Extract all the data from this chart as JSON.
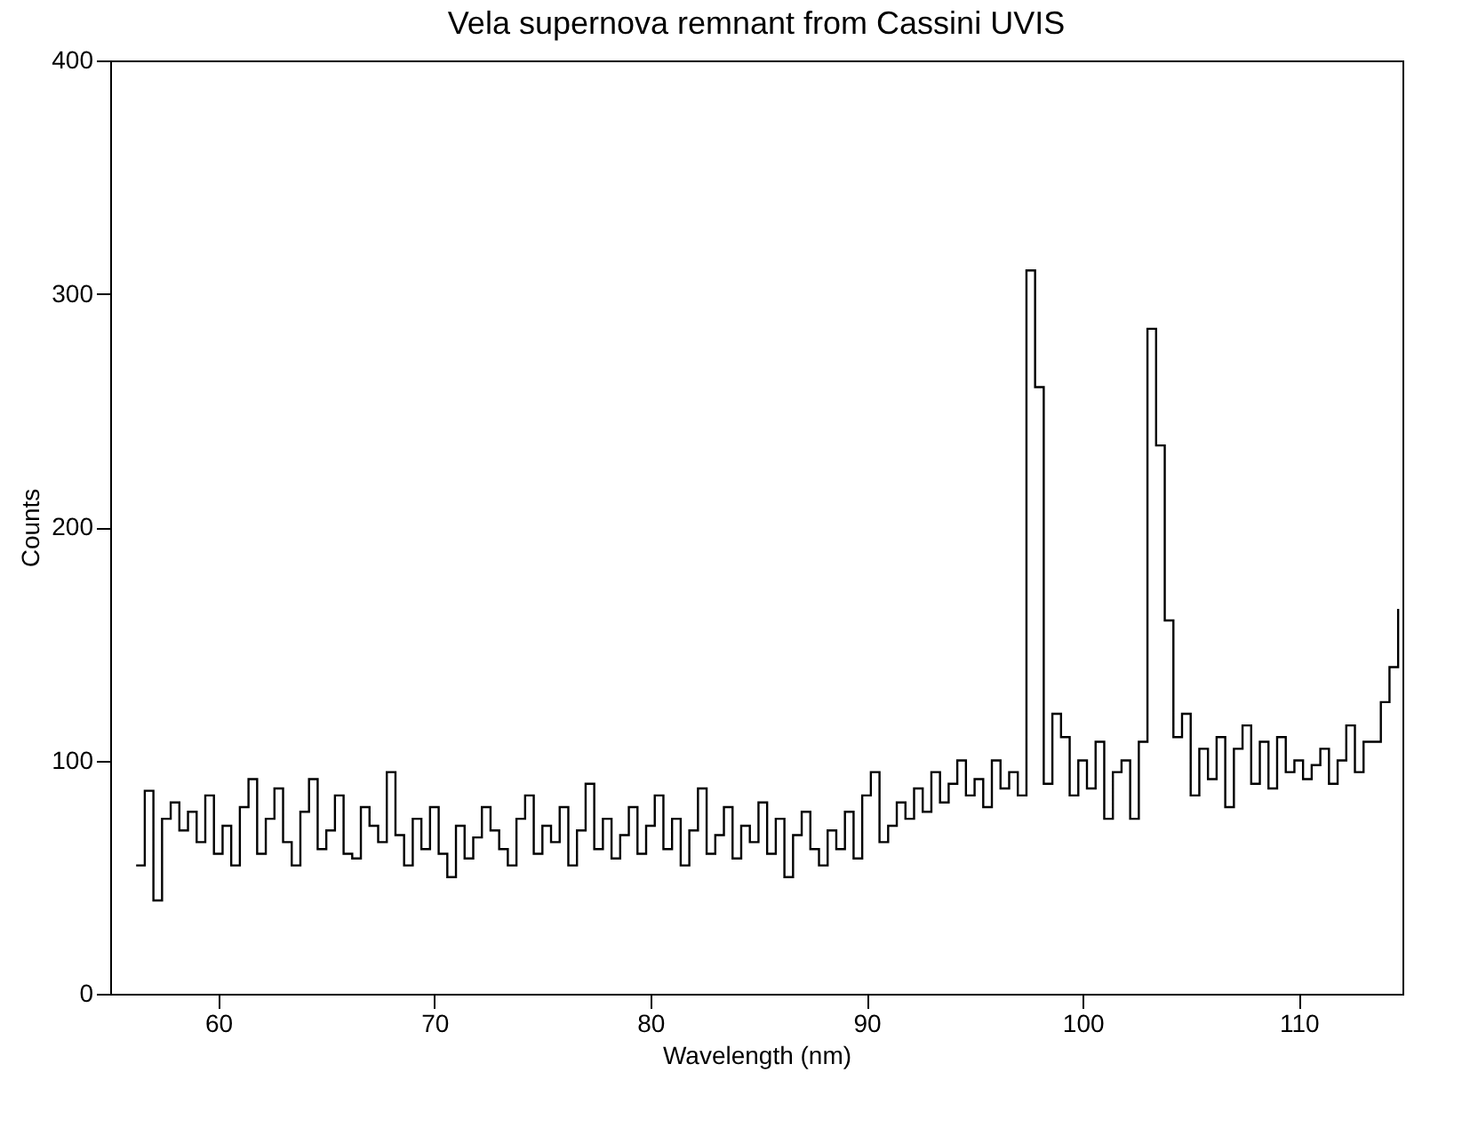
{
  "chart_data": {
    "type": "step",
    "title": "Vela supernova remnant from Cassini UVIS",
    "xlabel": "Wavelength (nm)",
    "ylabel": "Counts",
    "xlim": [
      55,
      114.8
    ],
    "xticks": [
      60,
      70,
      80,
      90,
      100,
      110
    ],
    "ylim": [
      0,
      400
    ],
    "yticks": [
      0,
      100,
      200,
      300,
      400
    ],
    "grid": false,
    "x": [
      56.2,
      56.6,
      57.0,
      57.4,
      57.8,
      58.2,
      58.6,
      59.0,
      59.4,
      59.8,
      60.2,
      60.6,
      61.0,
      61.4,
      61.8,
      62.2,
      62.6,
      63.0,
      63.4,
      63.8,
      64.2,
      64.6,
      65.0,
      65.4,
      65.8,
      66.2,
      66.6,
      67.0,
      67.4,
      67.8,
      68.2,
      68.6,
      69.0,
      69.4,
      69.8,
      70.2,
      70.6,
      71.0,
      71.4,
      71.8,
      72.2,
      72.6,
      73.0,
      73.4,
      73.8,
      74.2,
      74.6,
      75.0,
      75.4,
      75.8,
      76.2,
      76.6,
      77.0,
      77.4,
      77.8,
      78.2,
      78.6,
      79.0,
      79.4,
      79.8,
      80.2,
      80.6,
      81.0,
      81.4,
      81.8,
      82.2,
      82.6,
      83.0,
      83.4,
      83.8,
      84.2,
      84.6,
      85.0,
      85.4,
      85.8,
      86.2,
      86.6,
      87.0,
      87.4,
      87.8,
      88.2,
      88.6,
      89.0,
      89.4,
      89.8,
      90.2,
      90.6,
      91.0,
      91.4,
      91.8,
      92.2,
      92.6,
      93.0,
      93.4,
      93.8,
      94.2,
      94.6,
      95.0,
      95.4,
      95.8,
      96.2,
      96.6,
      97.0,
      97.4,
      97.8,
      98.2,
      98.6,
      99.0,
      99.4,
      99.8,
      100.2,
      100.6,
      101.0,
      101.4,
      101.8,
      102.2,
      102.6,
      103.0,
      103.4,
      103.8,
      104.2,
      104.6,
      105.0,
      105.4,
      105.8,
      106.2,
      106.6,
      107.0,
      107.4,
      107.8,
      108.2,
      108.6,
      109.0,
      109.4,
      109.8,
      110.2,
      110.6,
      111.0,
      111.4,
      111.8,
      112.2,
      112.6,
      113.0,
      113.4,
      113.8,
      114.2,
      114.6
    ],
    "series": [
      {
        "color": "#000000",
        "values": [
          55,
          87,
          40,
          75,
          82,
          70,
          78,
          65,
          85,
          60,
          72,
          55,
          80,
          92,
          60,
          75,
          88,
          65,
          55,
          78,
          92,
          62,
          70,
          85,
          60,
          58,
          80,
          72,
          65,
          95,
          68,
          55,
          75,
          62,
          80,
          60,
          50,
          72,
          58,
          67,
          80,
          70,
          62,
          55,
          75,
          85,
          60,
          72,
          65,
          80,
          55,
          70,
          90,
          62,
          75,
          58,
          68,
          80,
          60,
          72,
          85,
          62,
          75,
          55,
          70,
          88,
          60,
          68,
          80,
          58,
          72,
          65,
          82,
          60,
          75,
          50,
          68,
          78,
          62,
          55,
          70,
          62,
          78,
          58,
          85,
          95,
          65,
          72,
          82,
          75,
          88,
          78,
          95,
          82,
          90,
          100,
          85,
          92,
          80,
          100,
          88,
          95,
          85,
          310,
          260,
          90,
          120,
          110,
          85,
          100,
          88,
          108,
          75,
          95,
          100,
          75,
          108,
          285,
          235,
          160,
          110,
          120,
          85,
          105,
          92,
          110,
          80,
          105,
          115,
          90,
          108,
          88,
          110,
          95,
          100,
          92,
          98,
          105,
          90,
          100,
          115,
          95,
          108,
          108,
          125,
          140,
          165
        ]
      }
    ]
  }
}
